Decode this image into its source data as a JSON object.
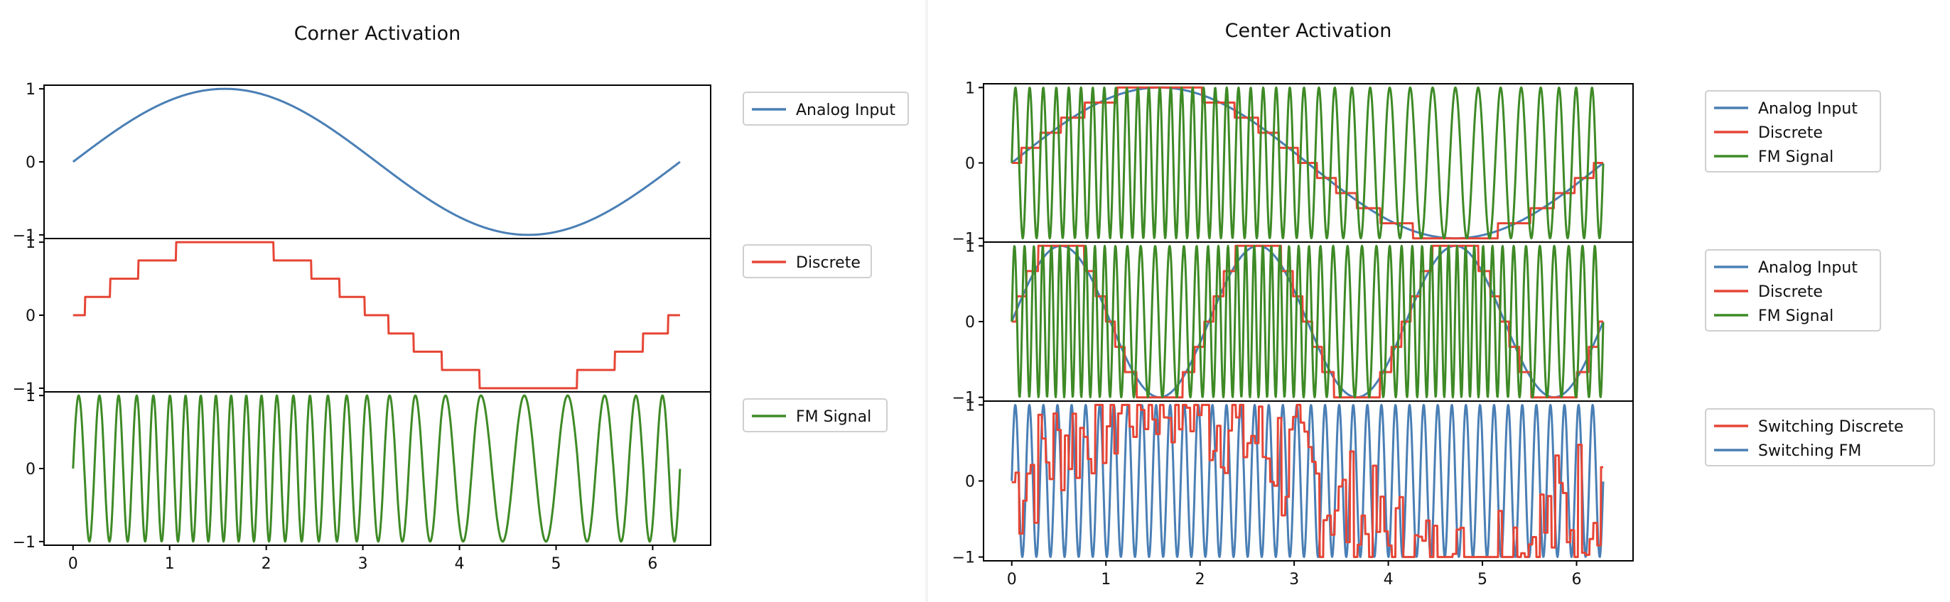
{
  "figures": [
    {
      "title": "Corner Activation",
      "panels": [
        {
          "legend": [
            "Analog Input"
          ]
        },
        {
          "legend": [
            "Discrete"
          ]
        },
        {
          "legend": [
            "FM Signal"
          ]
        }
      ]
    },
    {
      "title": "Center Activation",
      "panels": [
        {
          "legend": [
            "Analog Input",
            "Discrete",
            "FM Signal"
          ]
        },
        {
          "legend": [
            "Analog Input",
            "Discrete",
            "FM Signal"
          ]
        },
        {
          "legend": [
            "Switching Discrete",
            "Switching FM"
          ]
        }
      ]
    }
  ],
  "colors": {
    "analog": "#4a7fb5",
    "discrete": "#e64535",
    "fm": "#3e8a26",
    "switching_discrete": "#e64535",
    "switching_fm": "#4a7fb5"
  },
  "chart_data": [
    {
      "type": "line",
      "title": "Corner Activation",
      "subplots": [
        {
          "ylim": [
            -1.05,
            1.05
          ],
          "yticks": [
            "1",
            "0",
            "−1"
          ],
          "series": [
            {
              "name": "Analog Input",
              "function": "sin(x)",
              "x_range": [
                0,
                6.283
              ]
            }
          ]
        },
        {
          "ylim": [
            -1.05,
            1.05
          ],
          "yticks": [
            "1",
            "0",
            "−1"
          ],
          "series": [
            {
              "name": "Discrete",
              "function": "sin(x) quantized to 8 levels",
              "levels": 8,
              "x_range": [
                0,
                6.283
              ]
            }
          ]
        },
        {
          "ylim": [
            -1.05,
            1.05
          ],
          "yticks": [
            "1",
            "0",
            "−1"
          ],
          "series": [
            {
              "name": "FM Signal",
              "function": "sin(carrier phase modulated by the discrete signal)",
              "x_range": [
                0,
                6.283
              ]
            }
          ]
        }
      ],
      "xlim": [
        -0.3,
        6.6
      ],
      "xticks": [
        "0",
        "1",
        "2",
        "3",
        "4",
        "5",
        "6"
      ],
      "legend_position": "outside-right"
    },
    {
      "type": "line",
      "title": "Center Activation",
      "subplots": [
        {
          "ylim": [
            -1.05,
            1.05
          ],
          "yticks": [
            "1",
            "0",
            "−1"
          ],
          "series": [
            {
              "name": "Analog Input",
              "function": "sin(x)"
            },
            {
              "name": "Discrete",
              "function": "sin(x) quantized to 10 levels",
              "levels": 10
            },
            {
              "name": "FM Signal",
              "function": "sin(carrier phase modulated by the discrete signal)"
            }
          ]
        },
        {
          "ylim": [
            -1.05,
            1.05
          ],
          "yticks": [
            "1",
            "0",
            "−1"
          ],
          "series": [
            {
              "name": "Analog Input",
              "function": "sin(3x)"
            },
            {
              "name": "Discrete",
              "function": "sin(3x) quantized",
              "levels": 6
            },
            {
              "name": "FM Signal",
              "function": "sin(carrier phase modulated by the discrete signal)"
            }
          ]
        },
        {
          "ylim": [
            -1.05,
            1.05
          ],
          "yticks": [
            "1",
            "0",
            "−1"
          ],
          "series": [
            {
              "name": "Switching Discrete",
              "function": "noisy switching discrete signal"
            },
            {
              "name": "Switching FM",
              "function": "switching FM carrier"
            }
          ]
        }
      ],
      "xlim": [
        -0.3,
        6.6
      ],
      "xticks": [
        "0",
        "1",
        "2",
        "3",
        "4",
        "5",
        "6"
      ],
      "legend_position": "outside-right"
    }
  ]
}
